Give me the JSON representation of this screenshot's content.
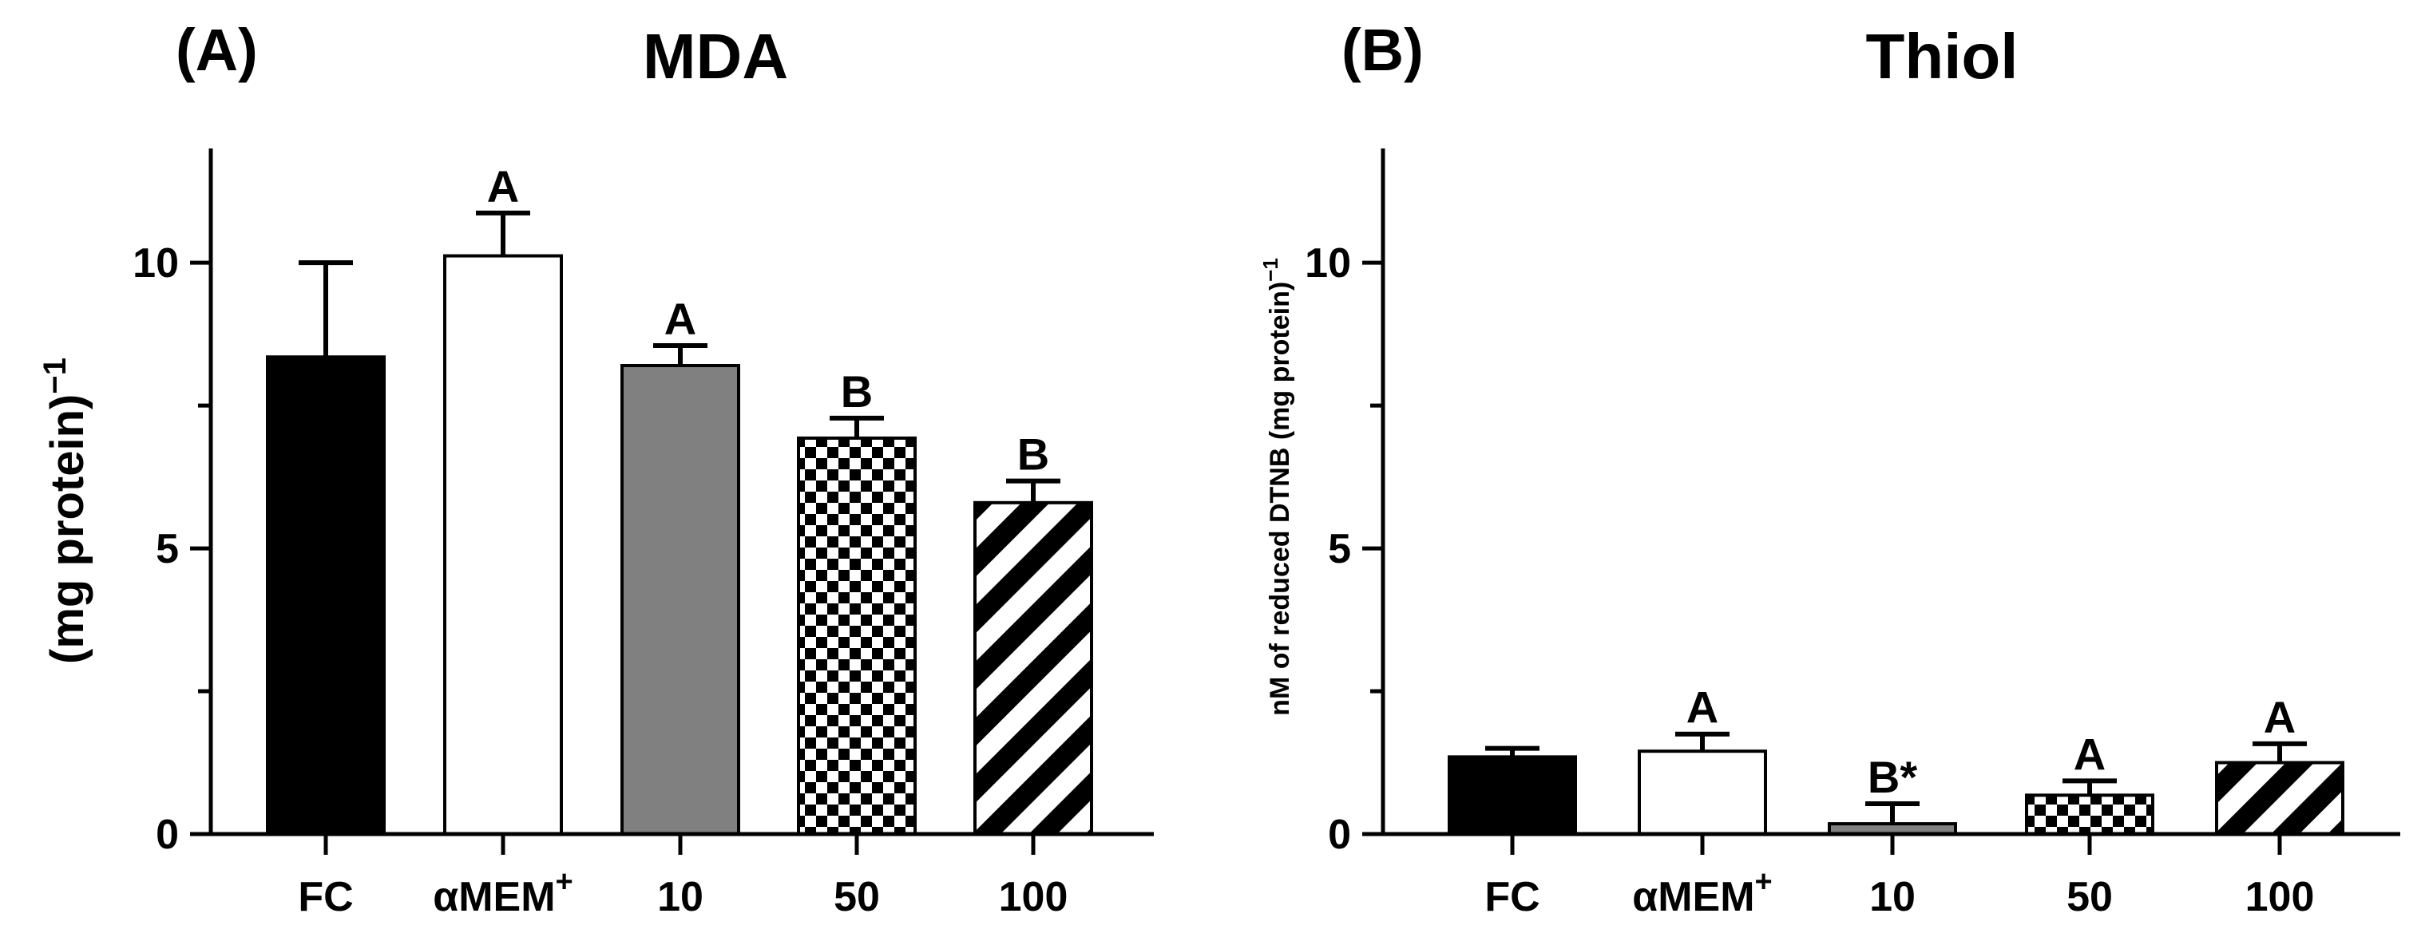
{
  "chart_data": [
    {
      "type": "bar",
      "panel": "(A)",
      "title": "MDA",
      "ylabel": "(mg protein)",
      "ylabel_sup": "−1",
      "ylim": [
        0,
        12
      ],
      "yticks": [
        0,
        5,
        10
      ],
      "categories": [
        {
          "label": "FC",
          "sup": ""
        },
        {
          "label": "αMEM",
          "sup": "+"
        },
        {
          "label": "10",
          "sup": ""
        },
        {
          "label": "50",
          "sup": ""
        },
        {
          "label": "100",
          "sup": ""
        }
      ],
      "values": [
        8.35,
        10.12,
        8.2,
        6.93,
        5.8
      ],
      "errors": [
        1.65,
        0.75,
        0.35,
        0.35,
        0.38
      ],
      "significance": [
        "",
        "A",
        "A",
        "B",
        "B"
      ],
      "fills": [
        "solid-black",
        "white",
        "solid-gray",
        "checker",
        "diagonal-stripes"
      ]
    },
    {
      "type": "bar",
      "panel": "(B)",
      "title": "Thiol",
      "ylabel": "nM of reduced DTNB (mg protein)",
      "ylabel_sup": "−1",
      "ylim": [
        0,
        12
      ],
      "yticks": [
        0,
        5,
        10
      ],
      "categories": [
        {
          "label": "FC",
          "sup": ""
        },
        {
          "label": "αMEM",
          "sup": "+"
        },
        {
          "label": "10",
          "sup": ""
        },
        {
          "label": "50",
          "sup": ""
        },
        {
          "label": "100",
          "sup": ""
        }
      ],
      "values": [
        1.35,
        1.45,
        0.18,
        0.68,
        1.25
      ],
      "errors": [
        0.15,
        0.3,
        0.35,
        0.25,
        0.33
      ],
      "significance": [
        "",
        "A",
        "B*",
        "A",
        "A"
      ],
      "fills": [
        "solid-black",
        "white",
        "solid-gray",
        "checker",
        "diagonal-stripes"
      ]
    }
  ],
  "colors": {
    "black": "#000000",
    "gray": "#808080",
    "white": "#ffffff"
  }
}
